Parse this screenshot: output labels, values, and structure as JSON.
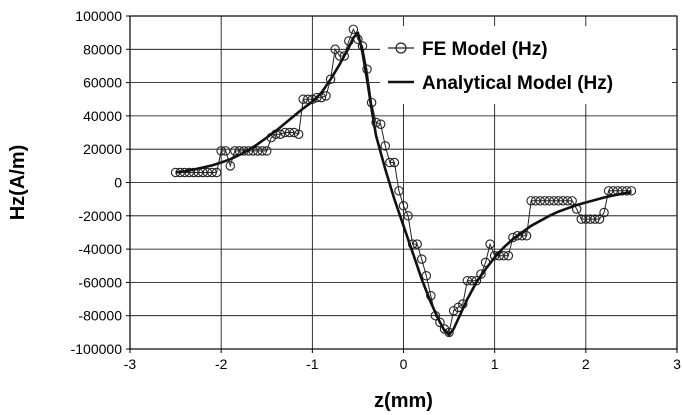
{
  "chart_data": {
    "type": "line",
    "title": "",
    "xlabel": "z(mm)",
    "ylabel": "Hz(A/m)",
    "xlim": [
      -3,
      3
    ],
    "ylim": [
      -100000,
      100000
    ],
    "x_ticks": [
      -3,
      -2,
      -1,
      0,
      1,
      2,
      3
    ],
    "y_ticks": [
      100000,
      80000,
      60000,
      40000,
      20000,
      0,
      -20000,
      -40000,
      -60000,
      -80000,
      -100000
    ],
    "x_tick_labels": [
      "-3",
      "-2",
      "-1",
      "0",
      "1",
      "2",
      "3"
    ],
    "y_tick_labels": [
      "100000",
      "80000",
      "60000",
      "40000",
      "20000",
      "0",
      "-20000",
      "-40000",
      "-60000",
      "-80000",
      "-100000"
    ],
    "grid": true,
    "legend_position": "top-right",
    "series": [
      {
        "name": "FE Model (Hz)",
        "style": "line-with-open-circles",
        "color": "#222222",
        "x": [
          -2.5,
          -2.45,
          -2.4,
          -2.35,
          -2.3,
          -2.25,
          -2.2,
          -2.15,
          -2.1,
          -2.05,
          -2.0,
          -1.95,
          -1.9,
          -1.85,
          -1.8,
          -1.75,
          -1.7,
          -1.65,
          -1.6,
          -1.55,
          -1.5,
          -1.45,
          -1.4,
          -1.35,
          -1.3,
          -1.25,
          -1.2,
          -1.15,
          -1.1,
          -1.05,
          -1.0,
          -0.95,
          -0.9,
          -0.85,
          -0.8,
          -0.75,
          -0.7,
          -0.65,
          -0.6,
          -0.55,
          -0.5,
          -0.45,
          -0.4,
          -0.35,
          -0.3,
          -0.25,
          -0.2,
          -0.15,
          -0.1,
          -0.05,
          0.0,
          0.05,
          0.1,
          0.15,
          0.2,
          0.25,
          0.3,
          0.35,
          0.4,
          0.45,
          0.5,
          0.55,
          0.6,
          0.65,
          0.7,
          0.75,
          0.8,
          0.85,
          0.9,
          0.95,
          1.0,
          1.05,
          1.1,
          1.15,
          1.2,
          1.25,
          1.3,
          1.35,
          1.4,
          1.45,
          1.5,
          1.55,
          1.6,
          1.65,
          1.7,
          1.75,
          1.8,
          1.85,
          1.9,
          1.95,
          2.0,
          2.05,
          2.1,
          2.15,
          2.2,
          2.25,
          2.3,
          2.35,
          2.4,
          2.45,
          2.5
        ],
        "values": [
          6000,
          6000,
          6000,
          6000,
          6000,
          6000,
          6000,
          6000,
          6000,
          6000,
          19000,
          19000,
          10000,
          19000,
          19000,
          19000,
          19000,
          19000,
          19000,
          19000,
          19000,
          27000,
          29000,
          29000,
          30000,
          30000,
          30000,
          29000,
          50000,
          50000,
          50000,
          51000,
          51000,
          52000,
          62000,
          80000,
          76000,
          76000,
          85000,
          92000,
          86000,
          82000,
          68000,
          48000,
          36000,
          35000,
          22000,
          12000,
          12000,
          -5000,
          -14000,
          -20000,
          -37000,
          -37000,
          -46000,
          -56000,
          -68000,
          -80000,
          -84000,
          -88000,
          -90000,
          -77000,
          -75000,
          -73000,
          -59000,
          -59000,
          -59000,
          -55000,
          -48000,
          -37000,
          -44000,
          -44000,
          -44000,
          -44000,
          -33000,
          -32000,
          -32000,
          -32000,
          -11000,
          -11000,
          -11000,
          -11000,
          -11000,
          -11000,
          -11000,
          -11000,
          -11000,
          -11000,
          -16000,
          -22000,
          -22000,
          -22000,
          -22000,
          -22000,
          -18000,
          -5000,
          -5000,
          -5000,
          -5000,
          -5000,
          -5000
        ]
      },
      {
        "name": "Analytical Model (Hz)",
        "style": "solid-line",
        "color": "#111111",
        "x": [
          -2.5,
          -2.4,
          -2.3,
          -2.2,
          -2.1,
          -2.0,
          -1.9,
          -1.8,
          -1.7,
          -1.6,
          -1.5,
          -1.4,
          -1.3,
          -1.2,
          -1.1,
          -1.0,
          -0.9,
          -0.8,
          -0.7,
          -0.6,
          -0.55,
          -0.5,
          -0.45,
          -0.4,
          -0.35,
          -0.3,
          -0.2,
          -0.1,
          0.0,
          0.1,
          0.2,
          0.3,
          0.4,
          0.45,
          0.5,
          0.55,
          0.6,
          0.7,
          0.8,
          0.9,
          1.0,
          1.1,
          1.2,
          1.3,
          1.4,
          1.5,
          1.6,
          1.7,
          1.8,
          1.9,
          2.0,
          2.1,
          2.2,
          2.3,
          2.4,
          2.5
        ],
        "values": [
          6000,
          6800,
          7800,
          9000,
          10300,
          12000,
          14000,
          16500,
          19500,
          23000,
          27000,
          31000,
          35500,
          40000,
          44500,
          48500,
          54000,
          62000,
          71000,
          81000,
          87000,
          90000,
          78000,
          62000,
          44000,
          28000,
          8000,
          -10000,
          -26000,
          -42000,
          -58000,
          -72000,
          -84000,
          -89000,
          -91500,
          -88000,
          -82000,
          -70000,
          -60000,
          -52000,
          -45000,
          -39000,
          -34000,
          -30000,
          -26000,
          -23000,
          -20000,
          -17500,
          -15500,
          -13500,
          -12000,
          -10500,
          -9000,
          -7800,
          -6700,
          -5800
        ]
      }
    ]
  }
}
